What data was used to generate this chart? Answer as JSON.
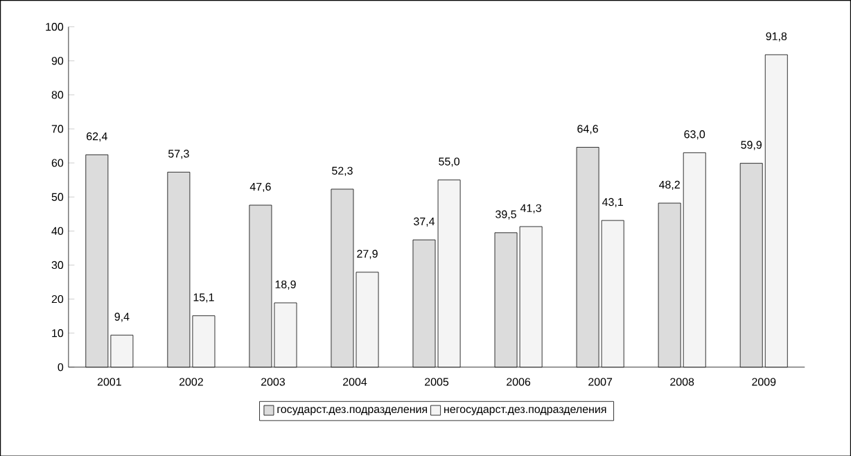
{
  "chart_data": {
    "type": "bar",
    "categories": [
      "2001",
      "2002",
      "2003",
      "2004",
      "2005",
      "2006",
      "2007",
      "2008",
      "2009"
    ],
    "series": [
      {
        "name": "государст.дез.подразделения",
        "color": "#dcdcdc",
        "values": [
          62.4,
          57.3,
          47.6,
          52.3,
          37.4,
          39.5,
          64.6,
          48.2,
          59.9
        ],
        "value_labels": [
          "62,4",
          "57,3",
          "47,6",
          "52,3",
          "37,4",
          "39,5",
          "64,6",
          "48,2",
          "59,9"
        ]
      },
      {
        "name": "негосударст.дез.подразделения",
        "color": "#f4f4f4",
        "values": [
          9.4,
          15.1,
          18.9,
          27.9,
          55.0,
          41.3,
          43.1,
          63.0,
          91.8
        ],
        "value_labels": [
          "9,4",
          "15,1",
          "18,9",
          "27,9",
          "55,0",
          "41,3",
          "43,1",
          "63,0",
          "91,8"
        ]
      }
    ],
    "ylim": [
      0,
      100
    ],
    "yticks": [
      0,
      10,
      20,
      30,
      40,
      50,
      60,
      70,
      80,
      90,
      100
    ],
    "grid": false,
    "legend": "bottom"
  }
}
